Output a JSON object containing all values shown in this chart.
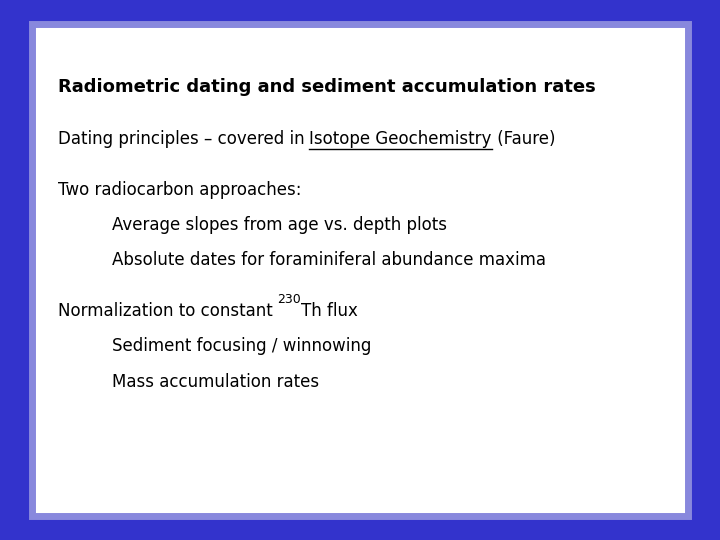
{
  "background_outer": "#3333cc",
  "background_inner": "#ffffff",
  "border_color": "#8888dd",
  "text_color": "#000000",
  "title": "Radiometric dating and sediment accumulation rates",
  "prefix2": "Dating principles – covered in ",
  "underlined2": "Isotope Geochemistry",
  "suffix2": " (Faure)",
  "line3a": "Two radiocarbon approaches:",
  "line3b": "Average slopes from age vs. depth plots",
  "line3c": "Absolute dates for foraminiferal abundance maxima",
  "line4a_pre": "Normalization to constant ",
  "line4a_sup": "230",
  "line4a_post": "Th flux",
  "line4b": "Sediment focusing / winnowing",
  "line4c": "Mass accumulation rates",
  "font_size_title": 13,
  "font_size_body": 12,
  "font_size_sup": 9,
  "font_family": "DejaVu Sans"
}
